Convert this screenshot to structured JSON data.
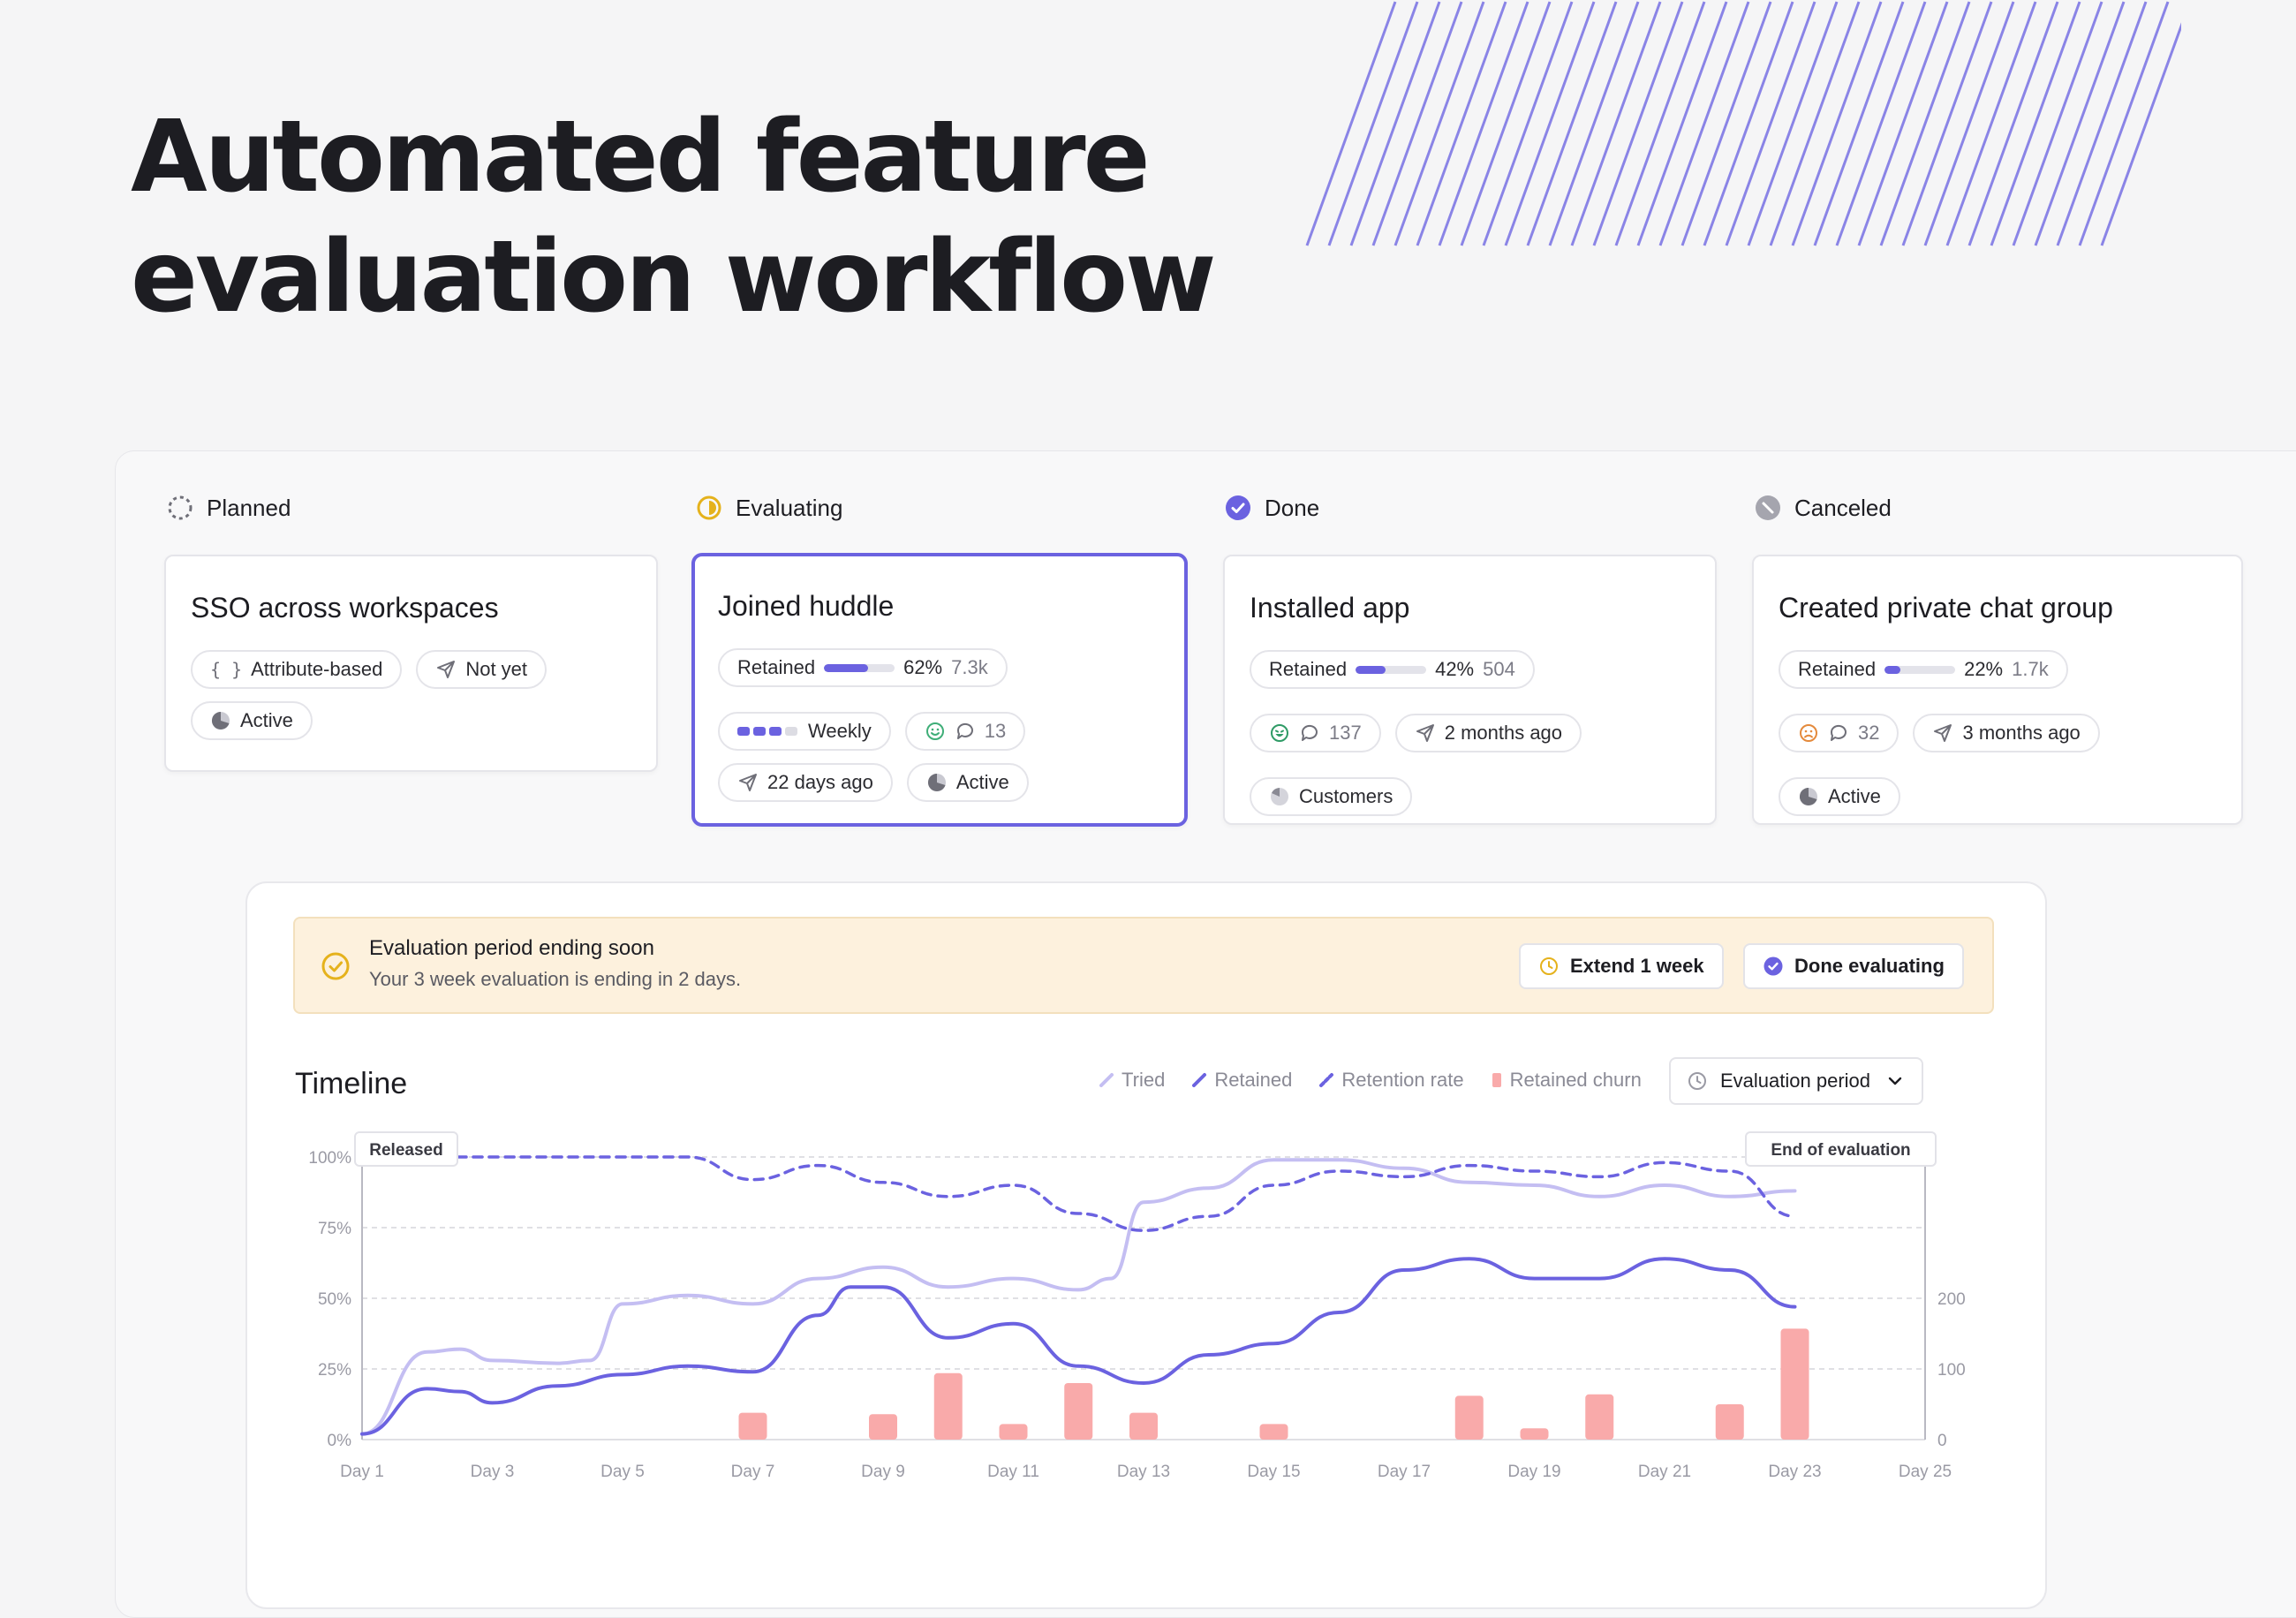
{
  "heading": {
    "line1": "Automated feature",
    "line2": "evaluation workflow"
  },
  "columns": [
    {
      "status": "Planned",
      "icon": "dashed-circle-icon"
    },
    {
      "status": "Evaluating",
      "icon": "half-circle-icon"
    },
    {
      "status": "Done",
      "icon": "check-circle-icon"
    },
    {
      "status": "Canceled",
      "icon": "slash-circle-icon"
    }
  ],
  "cards": [
    {
      "title": "SSO across workspaces",
      "chips": {
        "attribute": "Attribute-based",
        "release": "Not yet",
        "state": "Active"
      }
    },
    {
      "title": "Joined huddle",
      "selected": true,
      "retained": {
        "label": "Retained",
        "percent": "62%",
        "fraction": 0.62,
        "count": "7.3k"
      },
      "chips": {
        "frequency": "Weekly",
        "comments": "13",
        "release": "22 days ago",
        "state": "Active"
      }
    },
    {
      "title": "Installed app",
      "retained": {
        "label": "Retained",
        "percent": "42%",
        "fraction": 0.42,
        "count": "504"
      },
      "chips": {
        "comments": "137",
        "release": "2 months ago",
        "audience": "Customers"
      }
    },
    {
      "title": "Created private chat group",
      "retained": {
        "label": "Retained",
        "percent": "22%",
        "fraction": 0.22,
        "count": "1.7k"
      },
      "chips": {
        "comments": "32",
        "release": "3 months ago",
        "state": "Active"
      }
    }
  ],
  "alert": {
    "title": "Evaluation period ending soon",
    "subtitle": "Your 3 week evaluation is ending in 2 days.",
    "extend_label": "Extend 1 week",
    "done_label": "Done evaluating"
  },
  "timeline": {
    "title": "Timeline",
    "legend": [
      "Tried",
      "Retained",
      "Retention rate",
      "Retained churn"
    ],
    "period_select": "Evaluation period"
  },
  "colors": {
    "accent": "#6b62e0",
    "tried": "#c4bef2",
    "churn": "#f9aaaa",
    "warning": "#e5b21c",
    "hatch": "#8a84e6"
  },
  "chart_data": {
    "type": "line",
    "x_labels": [
      "Day 1",
      "Day 3",
      "Day 5",
      "Day 7",
      "Day 9",
      "Day 11",
      "Day 13",
      "Day 15",
      "Day 17",
      "Day 19",
      "Day 21",
      "Day 23",
      "Day 25"
    ],
    "x_range": [
      1,
      25
    ],
    "y_left_ticks": [
      "100%",
      "75%",
      "50%",
      "25%",
      "0%"
    ],
    "y_left_range": [
      0,
      100
    ],
    "y_right_ticks": [
      "200",
      "100",
      "0"
    ],
    "y_right_range": [
      0,
      400
    ],
    "annotations": {
      "start": "Released",
      "end": "End of evaluation"
    },
    "series": [
      {
        "name": "Tried",
        "x": [
          1,
          2,
          2.5,
          3,
          4,
          4.5,
          5,
          6,
          7,
          8,
          9,
          10,
          11,
          12,
          12.5,
          13,
          14,
          15,
          16,
          17,
          18,
          19,
          20,
          21,
          22,
          23
        ],
        "y": [
          2,
          31,
          32,
          28,
          27,
          28,
          48,
          51,
          48,
          57,
          61,
          54,
          57,
          53,
          57,
          84,
          89,
          99,
          99,
          96,
          91,
          90,
          86,
          90,
          86,
          88
        ]
      },
      {
        "name": "Retained",
        "x": [
          1,
          2,
          2.5,
          3,
          4,
          5,
          6,
          7,
          8,
          8.5,
          9,
          10,
          11,
          12,
          13,
          14,
          15,
          16,
          17,
          18,
          19,
          20,
          21,
          22,
          23
        ],
        "y": [
          2,
          18,
          17,
          13,
          19,
          23,
          26,
          24,
          44,
          54,
          54,
          36,
          41,
          26,
          20,
          30,
          34,
          45,
          60,
          64,
          57,
          57,
          64,
          60,
          47
        ]
      },
      {
        "name": "Retention rate",
        "style": "dashed",
        "x": [
          1,
          2,
          3,
          4,
          5,
          6,
          7,
          8,
          9,
          10,
          11,
          12,
          13,
          14,
          15,
          16,
          17,
          18,
          19,
          20,
          21,
          22,
          23
        ],
        "y": [
          100,
          100,
          100,
          100,
          100,
          100,
          92,
          97,
          91,
          86,
          90,
          80,
          74,
          79,
          90,
          95,
          93,
          97,
          95,
          93,
          98,
          95,
          79
        ]
      },
      {
        "name": "Retained churn",
        "type": "bar",
        "axis": "right",
        "x": [
          7,
          9,
          10,
          11,
          12,
          13,
          15,
          18,
          19,
          20,
          22,
          23
        ],
        "y": [
          38,
          36,
          94,
          22,
          80,
          38,
          22,
          62,
          16,
          64,
          50,
          157
        ]
      }
    ]
  }
}
